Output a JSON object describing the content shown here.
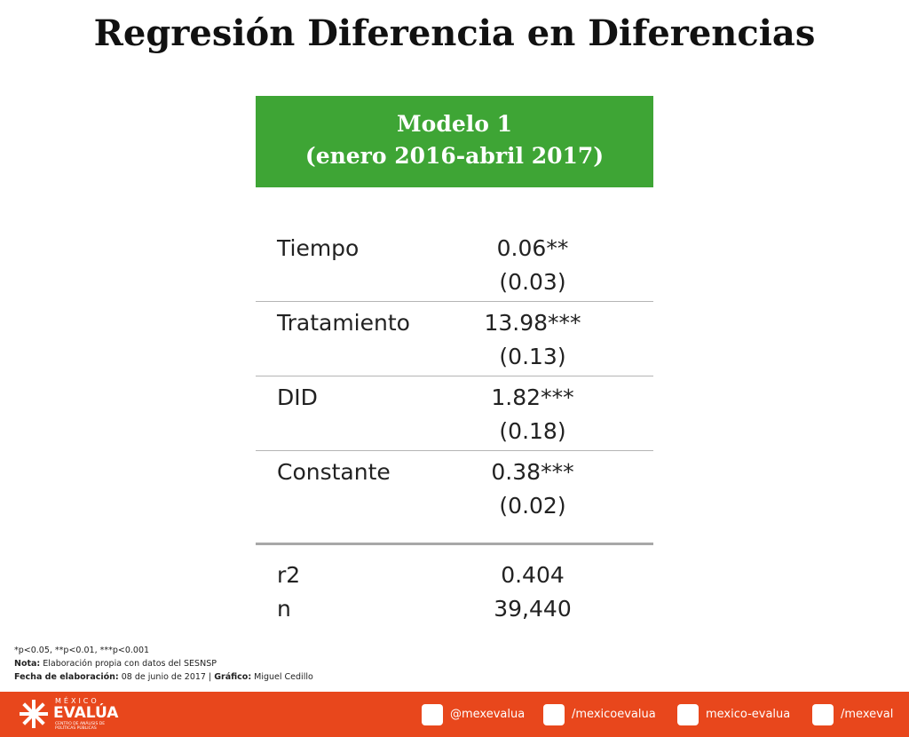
{
  "header": {
    "title": "Regresión Diferencia en Diferencias"
  },
  "model": {
    "name": "Modelo 1",
    "period": "(enero 2016-abril 2017)"
  },
  "table": {
    "rows": [
      {
        "label": "Tiempo",
        "value": "0.06**",
        "se": "(0.03)"
      },
      {
        "label": "Tratamiento",
        "value": "13.98***",
        "se": "(0.13)"
      },
      {
        "label": "DID",
        "value": "1.82***",
        "se": "(0.18)"
      },
      {
        "label": "Constante",
        "value": "0.38***",
        "se": "(0.02)"
      }
    ]
  },
  "stats": {
    "rows": [
      {
        "label": "r2",
        "value": "0.404"
      },
      {
        "label": "n",
        "value": "39,440"
      }
    ]
  },
  "notes": {
    "significance": "*p<0.05, **p<0.01, ***p<0.001",
    "nota_label": "Nota:",
    "nota_text": " Elaboración propia con datos del SESNSP",
    "fecha_label": "Fecha de elaboración:",
    "fecha_text": " 08 de junio de 2017 | ",
    "grafico_label": "Gráfico:",
    "grafico_text": " Miguel Cedillo"
  },
  "footer": {
    "logo_top": "MÉXICO",
    "logo_main": "EVALÚA",
    "logo_sub": "CENTRO DE ANÁLISIS DE POLÍTICAS PÚBLICAS",
    "social": [
      "@mexevalua",
      "/mexicoevalua",
      "mexico-evalua",
      "/mexeval"
    ]
  }
}
